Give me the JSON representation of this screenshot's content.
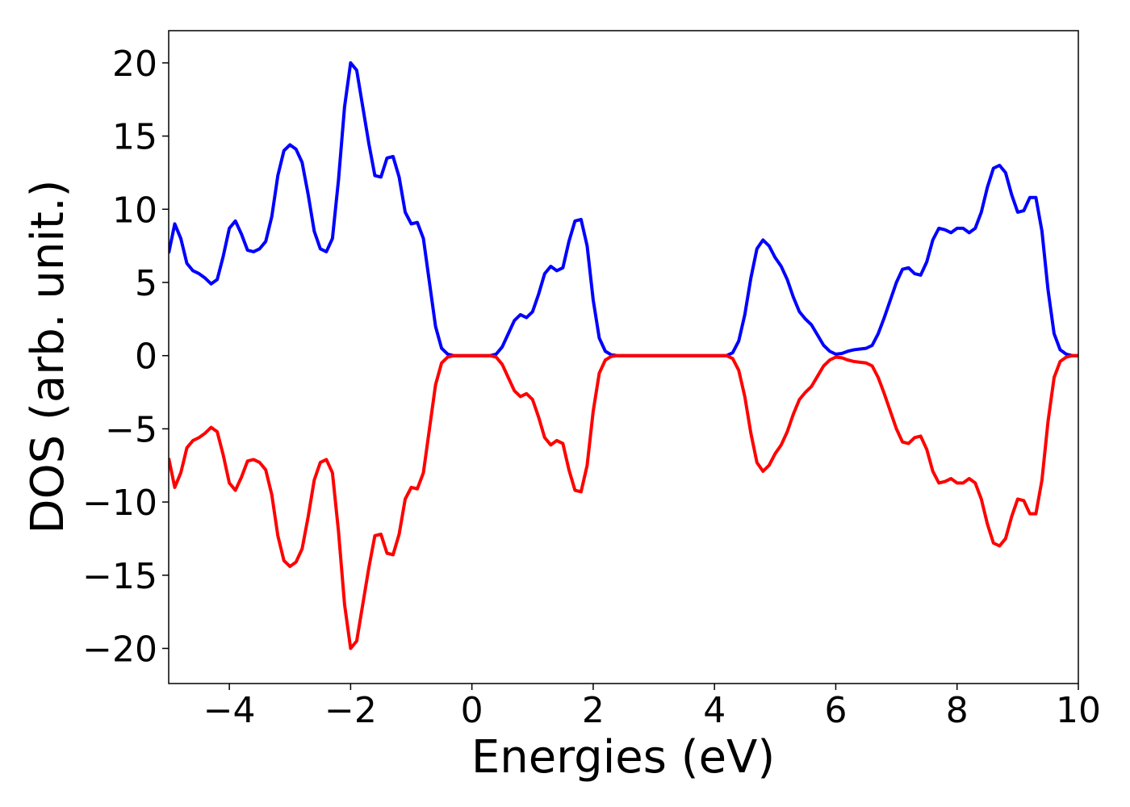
{
  "chart_data": {
    "type": "line",
    "xlabel": "Energies (eV)",
    "ylabel": "DOS (arb. unit.)",
    "x": [
      -5.0,
      -4.9,
      -4.8,
      -4.7,
      -4.6,
      -4.5,
      -4.4,
      -4.3,
      -4.2,
      -4.1,
      -4.0,
      -3.9,
      -3.8,
      -3.7,
      -3.6,
      -3.5,
      -3.4,
      -3.3,
      -3.2,
      -3.1,
      -3.0,
      -2.9,
      -2.8,
      -2.7,
      -2.6,
      -2.5,
      -2.4,
      -2.3,
      -2.2,
      -2.1,
      -2.0,
      -1.9,
      -1.8,
      -1.7,
      -1.6,
      -1.5,
      -1.4,
      -1.3,
      -1.2,
      -1.1,
      -1.0,
      -0.9,
      -0.8,
      -0.7,
      -0.6,
      -0.5,
      -0.4,
      -0.3,
      -0.2,
      -0.1,
      0.0,
      0.1,
      0.2,
      0.3,
      0.4,
      0.5,
      0.6,
      0.7,
      0.8,
      0.9,
      1.0,
      1.1,
      1.2,
      1.3,
      1.4,
      1.5,
      1.6,
      1.7,
      1.8,
      1.9,
      2.0,
      2.1,
      2.2,
      2.3,
      2.4,
      2.5,
      2.6,
      2.7,
      2.8,
      2.9,
      3.0,
      3.1,
      3.2,
      3.3,
      3.4,
      3.5,
      3.6,
      3.7,
      3.8,
      3.9,
      4.0,
      4.1,
      4.2,
      4.3,
      4.4,
      4.5,
      4.6,
      4.7,
      4.8,
      4.9,
      5.0,
      5.1,
      5.2,
      5.3,
      5.4,
      5.5,
      5.6,
      5.7,
      5.8,
      5.9,
      6.0,
      6.1,
      6.2,
      6.3,
      6.4,
      6.5,
      6.6,
      6.7,
      6.8,
      6.9,
      7.0,
      7.1,
      7.2,
      7.3,
      7.4,
      7.5,
      7.6,
      7.7,
      7.8,
      7.9,
      8.0,
      8.1,
      8.2,
      8.3,
      8.4,
      8.5,
      8.6,
      8.7,
      8.8,
      8.9,
      9.0,
      9.1,
      9.2,
      9.3,
      9.4,
      9.5,
      9.6,
      9.7,
      9.8,
      9.9,
      10.0
    ],
    "series": [
      {
        "color": "#0000ff",
        "values": [
          7.0,
          9.0,
          8.0,
          6.3,
          5.8,
          5.6,
          5.3,
          4.9,
          5.2,
          6.8,
          8.7,
          9.2,
          8.3,
          7.2,
          7.1,
          7.3,
          7.8,
          9.5,
          12.3,
          14.0,
          14.4,
          14.1,
          13.2,
          11.0,
          8.5,
          7.3,
          7.1,
          8.0,
          12.0,
          17.0,
          20.0,
          19.5,
          17.0,
          14.5,
          12.3,
          12.2,
          13.5,
          13.6,
          12.2,
          9.8,
          9.0,
          9.1,
          8.0,
          5.0,
          2.0,
          0.5,
          0.1,
          0,
          0,
          0,
          0,
          0,
          0,
          0,
          0.1,
          0.6,
          1.5,
          2.4,
          2.8,
          2.6,
          3.0,
          4.2,
          5.6,
          6.1,
          5.8,
          6.0,
          7.8,
          9.2,
          9.3,
          7.5,
          3.8,
          1.2,
          0.3,
          0.05,
          0,
          0,
          0,
          0,
          0,
          0,
          0,
          0,
          0,
          0,
          0,
          0,
          0,
          0,
          0,
          0,
          0,
          0,
          0,
          0.2,
          1.0,
          2.8,
          5.3,
          7.3,
          7.9,
          7.5,
          6.7,
          6.1,
          5.2,
          4.0,
          3.0,
          2.5,
          2.1,
          1.4,
          0.7,
          0.3,
          0.1,
          0.15,
          0.3,
          0.4,
          0.45,
          0.5,
          0.7,
          1.5,
          2.6,
          3.8,
          5.0,
          5.9,
          6.0,
          5.6,
          5.5,
          6.4,
          7.9,
          8.7,
          8.6,
          8.4,
          8.7,
          8.7,
          8.4,
          8.7,
          9.8,
          11.5,
          12.8,
          13.0,
          12.5,
          11.0,
          9.8,
          9.9,
          10.8,
          10.8,
          8.5,
          4.5,
          1.5,
          0.4,
          0.1,
          0,
          0
        ]
      },
      {
        "color": "#ff0000",
        "values": [
          -7.0,
          -9.0,
          -8.0,
          -6.3,
          -5.8,
          -5.6,
          -5.3,
          -4.9,
          -5.2,
          -6.8,
          -8.7,
          -9.2,
          -8.3,
          -7.2,
          -7.1,
          -7.3,
          -7.8,
          -9.5,
          -12.3,
          -14.0,
          -14.4,
          -14.1,
          -13.2,
          -11.0,
          -8.5,
          -7.3,
          -7.1,
          -8.0,
          -12.0,
          -17.0,
          -20.0,
          -19.5,
          -17.0,
          -14.5,
          -12.3,
          -12.2,
          -13.5,
          -13.6,
          -12.2,
          -9.8,
          -9.0,
          -9.1,
          -8.0,
          -5.0,
          -2.0,
          -0.5,
          -0.1,
          0,
          0,
          0,
          0,
          0,
          0,
          0,
          -0.1,
          -0.6,
          -1.5,
          -2.4,
          -2.8,
          -2.6,
          -3.0,
          -4.2,
          -5.6,
          -6.1,
          -5.8,
          -6.0,
          -7.8,
          -9.2,
          -9.3,
          -7.5,
          -3.8,
          -1.2,
          -0.3,
          -0.05,
          0,
          0,
          0,
          0,
          0,
          0,
          0,
          0,
          0,
          0,
          0,
          0,
          0,
          0,
          0,
          0,
          0,
          0,
          0,
          -0.2,
          -1.0,
          -2.8,
          -5.3,
          -7.3,
          -7.9,
          -7.5,
          -6.7,
          -6.1,
          -5.2,
          -4.0,
          -3.0,
          -2.5,
          -2.1,
          -1.4,
          -0.7,
          -0.3,
          -0.1,
          -0.15,
          -0.3,
          -0.4,
          -0.45,
          -0.5,
          -0.7,
          -1.5,
          -2.6,
          -3.8,
          -5.0,
          -5.9,
          -6.0,
          -5.6,
          -5.5,
          -6.4,
          -7.9,
          -8.7,
          -8.6,
          -8.4,
          -8.7,
          -8.7,
          -8.4,
          -8.7,
          -9.8,
          -11.5,
          -12.8,
          -13.0,
          -12.5,
          -11.0,
          -9.8,
          -9.9,
          -10.8,
          -10.8,
          -8.5,
          -4.5,
          -1.5,
          -0.4,
          -0.1,
          0,
          0
        ]
      }
    ],
    "xlim": [
      -5,
      10
    ],
    "xticks": [
      {
        "value": -4,
        "label": "−4"
      },
      {
        "value": -2,
        "label": "−2"
      },
      0,
      2,
      4,
      6,
      8,
      10
    ],
    "ylim": [
      -22.4,
      22.2
    ],
    "yticks": [
      {
        "value": -20,
        "label": "−20"
      },
      {
        "value": -15,
        "label": "−15"
      },
      {
        "value": -10,
        "label": "−10"
      },
      {
        "value": -5,
        "label": "−5"
      },
      0,
      5,
      10,
      15,
      20
    ],
    "grid": false
  }
}
